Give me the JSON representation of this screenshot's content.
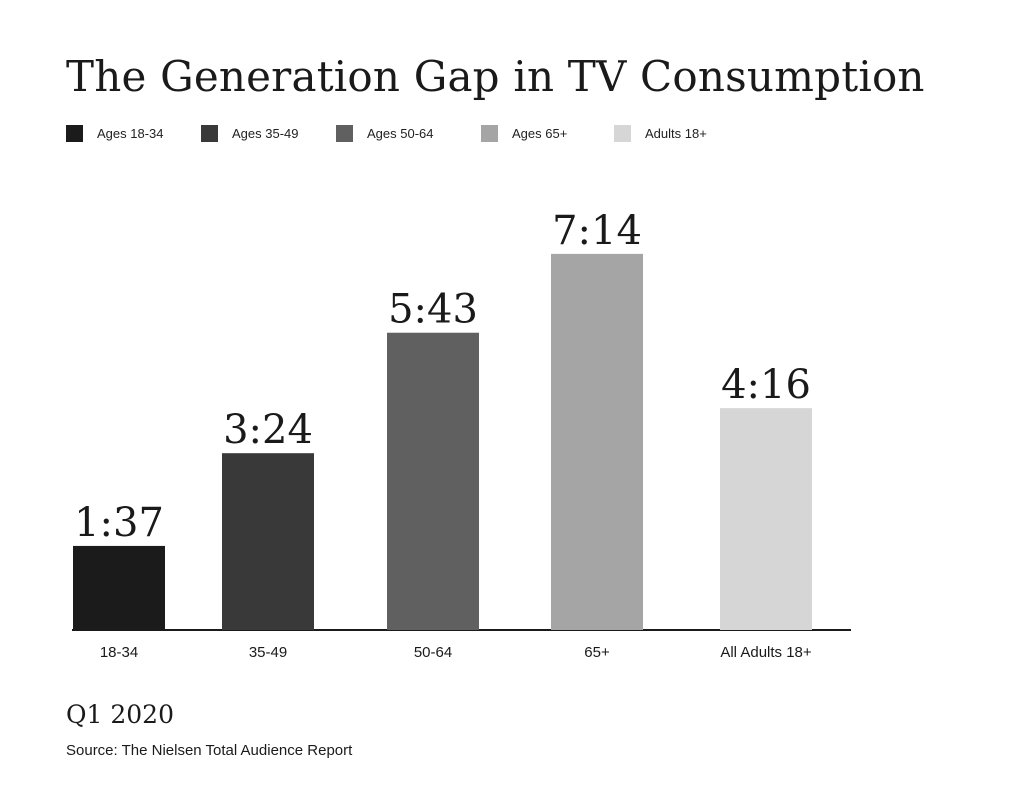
{
  "chart_data": {
    "type": "bar",
    "title": "The Generation Gap in TV Consumption",
    "categories": [
      "18-34",
      "35-49",
      "50-64",
      "65+",
      "All Adults 18+"
    ],
    "values": [
      1.6167,
      3.4,
      5.7167,
      7.2333,
      4.2667
    ],
    "value_labels": [
      "1:37",
      "3:24",
      "5:43",
      "7:14",
      "4:16"
    ],
    "colors": [
      "#1b1b1b",
      "#393939",
      "#606060",
      "#a5a5a5",
      "#d6d6d6"
    ],
    "legend": [
      {
        "label": "Ages 18-34",
        "color": "#1b1b1b"
      },
      {
        "label": "Ages 35-49",
        "color": "#393939"
      },
      {
        "label": "Ages 50-64",
        "color": "#606060"
      },
      {
        "label": "Ages 65+",
        "color": "#a5a5a5"
      },
      {
        "label": "Adults 18+",
        "color": "#d6d6d6"
      }
    ],
    "legend_position": "top-left",
    "ylim": [
      0,
      7.5
    ],
    "grid": false,
    "xlabel": "",
    "ylabel": ""
  },
  "footer": {
    "period": "Q1 2020",
    "source": "Source: The Nielsen Total Audience Report"
  }
}
